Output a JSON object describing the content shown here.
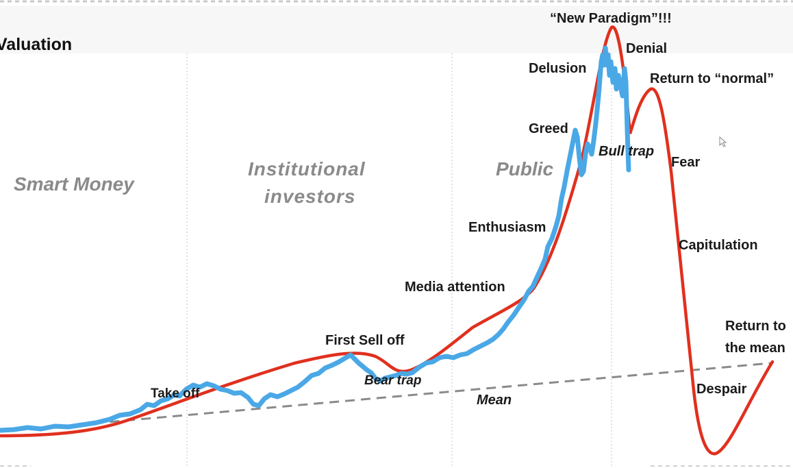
{
  "title": "Valuation",
  "phases": [
    "Smart Money",
    "Institutional investors",
    "Public"
  ],
  "stages": {
    "take_off": "Take off",
    "first_sell_off": "First Sell off",
    "bear_trap": "Bear trap",
    "media_attention": "Media attention",
    "enthusiasm": "Enthusiasm",
    "greed": "Greed",
    "delusion": "Delusion",
    "new_paradigm": "“New Paradigm”!!!",
    "denial": "Denial",
    "bull_trap": "Bull trap",
    "return_to_normal": "Return to “normal”",
    "fear": "Fear",
    "capitulation": "Capitulation",
    "despair": "Despair",
    "return_to_mean_1": "Return to",
    "return_to_mean_2": "the mean",
    "mean": "Mean"
  },
  "colors": {
    "red_curve": "#e0301e",
    "blue_line": "#4aa8e6",
    "mean_line": "#8a8a8a",
    "divider": "#d8d8d8"
  }
}
